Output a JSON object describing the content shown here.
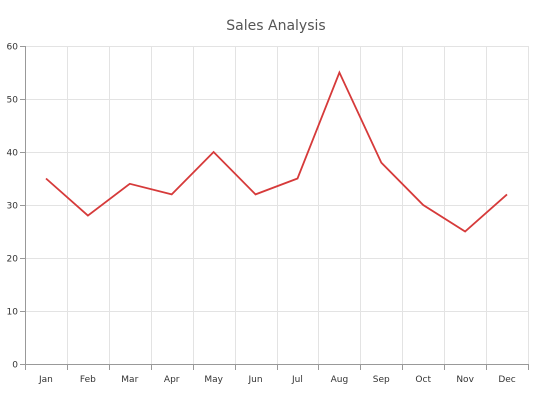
{
  "chart_data": {
    "type": "line",
    "title": "Sales Analysis",
    "xlabel": "",
    "ylabel": "",
    "categories": [
      "Jan",
      "Feb",
      "Mar",
      "Apr",
      "May",
      "Jun",
      "Jul",
      "Aug",
      "Sep",
      "Oct",
      "Nov",
      "Dec"
    ],
    "series": [
      {
        "values": [
          35,
          28,
          34,
          32,
          40,
          32,
          35,
          55,
          38,
          30,
          25,
          32
        ],
        "color": "#d63a3a"
      }
    ],
    "ylim": [
      0,
      60
    ],
    "yticks": [
      0,
      10,
      20,
      30,
      40,
      50,
      60
    ],
    "grid": true,
    "legend": "none"
  }
}
